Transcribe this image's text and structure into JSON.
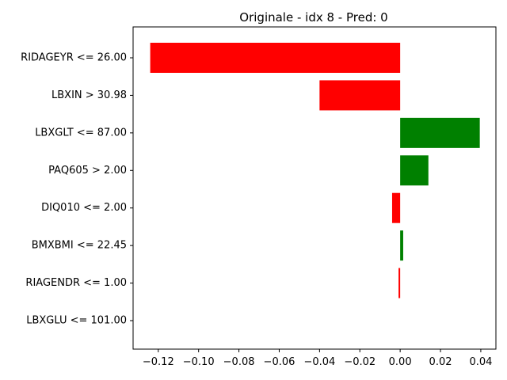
{
  "chart_data": {
    "type": "bar",
    "orientation": "horizontal",
    "title": "Originale - idx 8 - Pred: 0",
    "xlabel": "",
    "ylabel": "",
    "categories": [
      "RIDAGEYR <= 26.00",
      "LBXIN > 30.98",
      "LBXGLT <= 87.00",
      "PAQ605 > 2.00",
      "DIQ010 <= 2.00",
      "BMXBMI <= 22.45",
      "RIAGENDR <= 1.00",
      "LBXGLU <= 101.00"
    ],
    "values": [
      -0.124,
      -0.04,
      0.0395,
      0.014,
      -0.004,
      0.0015,
      -0.0008,
      0.0
    ],
    "bar_colors": [
      "#ff0000",
      "#ff0000",
      "#008000",
      "#008000",
      "#ff0000",
      "#008000",
      "#ff0000",
      "#008000"
    ],
    "xlim": [
      -0.1325,
      0.0475
    ],
    "xticks": [
      -0.12,
      -0.1,
      -0.08,
      -0.06,
      -0.04,
      -0.02,
      0.0,
      0.02,
      0.04
    ],
    "xtick_labels": [
      "−0.12",
      "−0.10",
      "−0.08",
      "−0.06",
      "−0.04",
      "−0.02",
      "0.00",
      "0.02",
      "0.04"
    ],
    "grid": false,
    "legend": "none"
  }
}
